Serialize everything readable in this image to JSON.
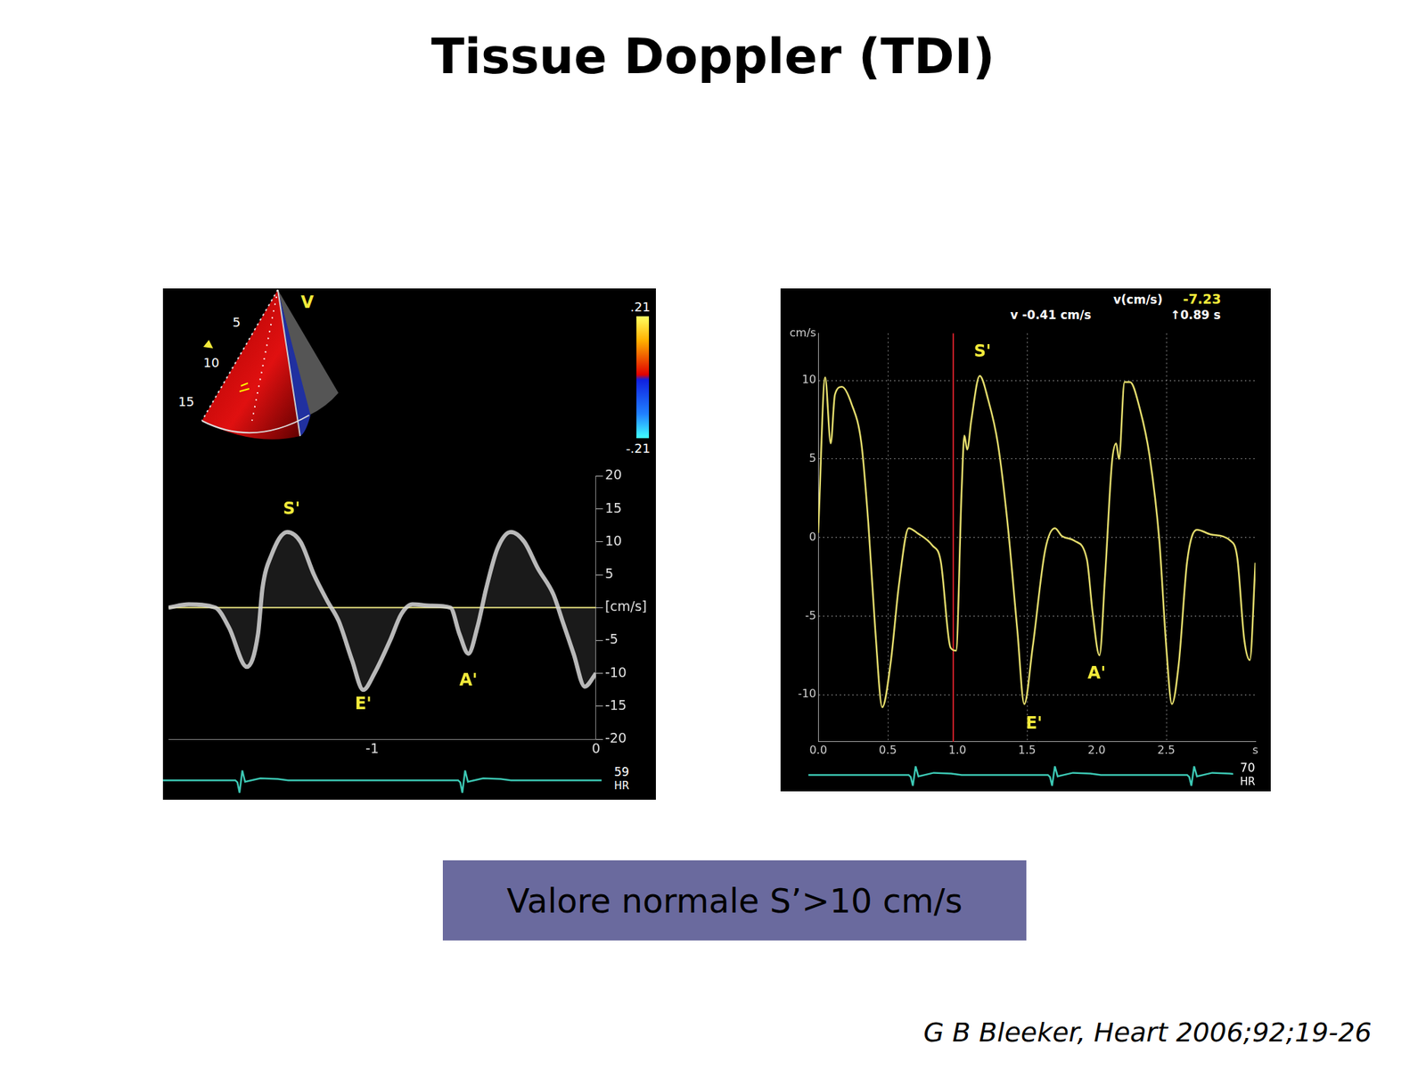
{
  "title": "Tissue Doppler (TDI)",
  "note": "Valore normale S’>10 cm/s",
  "citation": "G B Bleeker, Heart 2006;92;19-26",
  "chart_data": [
    {
      "type": "line",
      "x": [
        -1.91,
        -1.82,
        -1.7,
        -1.64,
        -1.56,
        -1.51,
        -1.49,
        -1.45,
        -1.38,
        -1.32,
        -1.26,
        -1.2,
        -1.15,
        -1.09,
        -1.04,
        -0.99,
        -0.92,
        -0.87,
        -0.82,
        -0.74,
        -0.65,
        -0.61,
        -0.57,
        -0.53,
        -0.49,
        -0.44,
        -0.38,
        -0.32,
        -0.26,
        -0.19,
        -0.15,
        -0.1,
        -0.05,
        0
      ],
      "values": [
        0,
        0.5,
        0,
        -3,
        -9,
        -4,
        3,
        8,
        11.5,
        10,
        5,
        1,
        -2,
        -8,
        -12.5,
        -10,
        -5,
        -1,
        0.5,
        0.3,
        0,
        -4,
        -7,
        -3,
        3,
        9,
        11.5,
        10,
        6,
        2,
        -2,
        -7,
        -12,
        -10
      ],
      "color": "#d4d4d4",
      "xlim": [
        -1.91,
        0
      ],
      "xticks": [
        -1,
        0
      ],
      "ylim": [
        -20,
        20
      ],
      "yticks": [
        -20,
        -15,
        -10,
        -5,
        {
          "value": 0,
          "label": "[cm/s]"
        },
        5,
        10,
        15,
        20
      ],
      "grid": false,
      "annotations": [
        {
          "text": "S'",
          "x": -1.36,
          "y": 14.9
        },
        {
          "text": "E'",
          "x": -1.04,
          "y": -14.8
        },
        {
          "text": "A'",
          "x": -0.57,
          "y": -11.2
        }
      ],
      "sector_labels": {
        "view": "V",
        "depths": [
          "5",
          "10",
          "15"
        ]
      },
      "colorbar": {
        "lim": [
          -0.21,
          0.21
        ],
        "ticks": [
          {
            "value": 0.21,
            "label": ".21"
          },
          {
            "value": -0.21,
            "label": "-.21"
          }
        ]
      },
      "heart_rate": "59",
      "heart_rate_unit": "HR"
    },
    {
      "type": "line",
      "x": [
        0,
        0.05,
        0.09,
        0.12,
        0.17,
        0.24,
        0.31,
        0.36,
        0.41,
        0.46,
        0.52,
        0.58,
        0.65,
        0.71,
        0.82,
        0.88,
        0.95,
        0.99,
        1.03,
        1.05,
        1.07,
        1.1,
        1.16,
        1.22,
        1.29,
        1.36,
        1.43,
        1.48,
        1.54,
        1.63,
        1.7,
        1.75,
        1.84,
        1.93,
        1.97,
        2.02,
        2.06,
        2.11,
        2.14,
        2.16,
        2.2,
        2.24,
        2.31,
        2.38,
        2.45,
        2.5,
        2.54,
        2.59,
        2.65,
        2.72,
        2.82,
        2.96,
        3.01,
        3.06,
        3.1,
        3.14
      ],
      "values": [
        0.3,
        10.2,
        6.0,
        9.1,
        9.6,
        8.5,
        6.0,
        0.9,
        -5.9,
        -10.8,
        -8.0,
        -3.0,
        0.6,
        0.3,
        -0.5,
        -1.5,
        -7.0,
        -7.2,
        3.0,
        6.5,
        5.6,
        7.5,
        10.3,
        8.8,
        6.0,
        0.9,
        -5.9,
        -10.6,
        -7.0,
        -0.8,
        0.6,
        0.1,
        -0.2,
        -1.4,
        -4.7,
        -7.5,
        -2.5,
        4.8,
        6.0,
        5.0,
        9.9,
        9.9,
        8.2,
        5.2,
        -0.2,
        -7.0,
        -10.6,
        -8.0,
        -1.5,
        0.5,
        0.2,
        -0.2,
        -1.3,
        -6.5,
        -7.8,
        -1.6
      ],
      "color": "#e4dc6c",
      "xlim": [
        0,
        3.14
      ],
      "xticks": [
        {
          "value": 0,
          "label": "0.0"
        },
        0.5,
        {
          "value": 1,
          "label": "1.0"
        },
        1.5,
        {
          "value": 2,
          "label": "2.0"
        },
        2.5,
        {
          "value": 3.14,
          "label": "s"
        }
      ],
      "ylim": [
        -13,
        13
      ],
      "yticks": [
        -10,
        -5,
        0,
        5,
        10,
        {
          "value": 13,
          "label": "cm/s"
        }
      ],
      "grid": true,
      "line_style": "solid",
      "annotations": [
        {
          "text": "S'",
          "x": 1.18,
          "y": 11.8
        },
        {
          "text": "E'",
          "x": 1.55,
          "y": -11.9
        },
        {
          "text": "A'",
          "x": 2.0,
          "y": -8.7
        }
      ],
      "cursor_x": 0.97,
      "readouts": {
        "velocity": "v -0.41 cm/s",
        "label": "v(cm/s)",
        "value": "-7.23",
        "time": "↑0.89 s"
      },
      "heart_rate": "70",
      "heart_rate_unit": "HR"
    }
  ]
}
